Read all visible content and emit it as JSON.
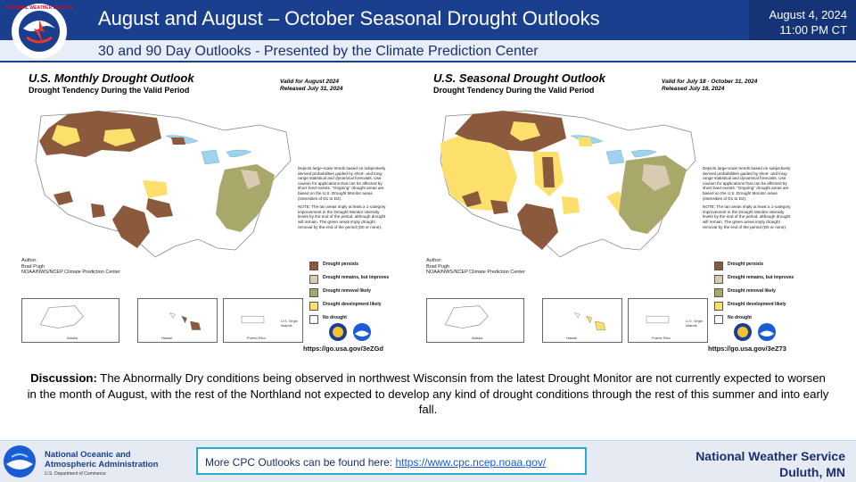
{
  "header": {
    "title": "August and August – October Seasonal Drought Outlooks",
    "subtitle": "30 and 90 Day Outlooks - Presented by the Climate Prediction Center",
    "date": "August 4, 2024",
    "time": "11:00 PM CT",
    "logo_text": "NATIONAL WEATHER SERVICE"
  },
  "monthly": {
    "title": "U.S. Monthly Drought Outlook",
    "subtitle": "Drought Tendency During the Valid Period",
    "valid": "Valid for August 2024",
    "released": "Released July 31, 2024",
    "author_label": "Author:",
    "author_name": "Brad Pugh",
    "author_org": "NOAA/NWS/NCEP Climate Prediction Center",
    "url": "https://go.usa.gov/3eZGd"
  },
  "seasonal": {
    "title": "U.S. Seasonal Drought Outlook",
    "subtitle": "Drought Tendency During the Valid Period",
    "valid": "Valid for July 18 - October 31, 2024",
    "released": "Released July 18, 2024",
    "author_label": "Author:",
    "author_name": "Brad Pugh",
    "author_org": "NOAA/NWS/NCEP Climate Prediction Center",
    "url": "https://go.usa.gov/3eZ73"
  },
  "note": {
    "para1": "Depicts large-scale trends based on subjectively derived probabilities guided by short- and long-range statistical and dynamical forecasts. Use caution for applications that can be affected by short lived events. \"Ongoing\" drought areas are based on the U.S. Drought Monitor areas (intensities of D1 to D4).",
    "para2": "NOTE: The tan areas imply at least a 1-category improvement in the Drought Monitor intensity levels by the end of the period, although drought will remain. The green areas imply drought removal by the end of the period (D0 or none)."
  },
  "legend": [
    {
      "label": "Drought persists",
      "color": "#8b5a3c"
    },
    {
      "label": "Drought remains, but improves",
      "color": "#d9cbb0"
    },
    {
      "label": "Drought removal likely",
      "color": "#a8a86a"
    },
    {
      "label": "Drought development likely",
      "color": "#fde06b"
    },
    {
      "label": "No drought",
      "color": "#ffffff"
    }
  ],
  "insets": {
    "alaska": "Alaska",
    "hawaii": "Hawaii",
    "puerto_rico": "Puerto Rico",
    "virgin_islands": "U.S. Virgin Islands"
  },
  "discussion": {
    "label": "Discussion:",
    "text": " The Abnormally Dry conditions being observed in northwest Wisconsin from the latest Drought Monitor are not currently expected to worsen in the month of August, with the rest of the Northland not expected to develop any kind of drought conditions through the rest of this summer and into early fall."
  },
  "footer": {
    "noaa_line1": "National Oceanic and",
    "noaa_line2": "Atmospheric Administration",
    "noaa_sub": "U.S. Department of Commerce",
    "cpc_text": "More CPC Outlooks can be found here: ",
    "cpc_link": "https://www.cpc.ncep.noaa.gov/",
    "office_line1": "National Weather Service",
    "office_line2": "Duluth, MN"
  },
  "colors": {
    "header_blue": "#1b3f8f",
    "persists": "#8b5a3c",
    "improves": "#d9cbb0",
    "removal": "#a8a86a",
    "development": "#fde06b",
    "water": "#9fd2ee"
  }
}
